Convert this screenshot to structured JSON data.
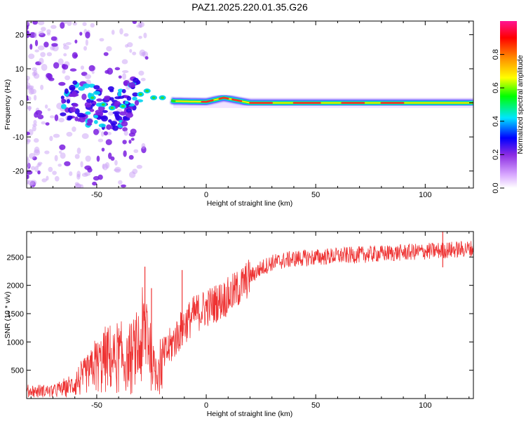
{
  "title": "PAZ1.2025.220.01.35.G26",
  "chart_data": [
    {
      "type": "heatmap",
      "xlabel": "Height of straight line (km)",
      "ylabel": "Frequency (Hz)",
      "xlim": [
        -82,
        122
      ],
      "ylim": [
        -25,
        24
      ],
      "x_ticks": [
        -50,
        0,
        50,
        100
      ],
      "y_ticks": [
        20,
        10,
        0,
        -10,
        -20
      ],
      "colorbar": {
        "label": "Normalized spectral amplitude",
        "range": [
          0,
          1
        ],
        "ticks": [
          "0.0",
          "0.2",
          "0.4",
          "0.6",
          "0.8"
        ],
        "colormap": [
          "#ffffff",
          "#d9a8ff",
          "#8a2be2",
          "#0000ff",
          "#00e5ff",
          "#00ff00",
          "#ffff00",
          "#ff8c00",
          "#ff0000",
          "#ff1493"
        ]
      },
      "ridge": [
        {
          "x": -65,
          "y": 0.5
        },
        {
          "x": -50,
          "y": -1
        },
        {
          "x": -40,
          "y": -1.5
        },
        {
          "x": -30,
          "y": 2.5
        },
        {
          "x": -20,
          "y": 1.5
        },
        {
          "x": -15,
          "y": 0.5
        },
        {
          "x": 0,
          "y": 0.3
        },
        {
          "x": 8,
          "y": 1.5
        },
        {
          "x": 20,
          "y": 0
        },
        {
          "x": 122,
          "y": 0
        }
      ]
    },
    {
      "type": "line",
      "xlabel": "Height of straight line (km)",
      "ylabel": "SNR (10 * v/v)",
      "xlim": [
        -82,
        122
      ],
      "ylim": [
        0,
        2950
      ],
      "x_ticks": [
        -50,
        0,
        50,
        100
      ],
      "y_ticks": [
        500,
        1000,
        1500,
        2000,
        2500
      ],
      "color": "#ee3333",
      "envelope": [
        {
          "x": -82,
          "y": 130
        },
        {
          "x": -70,
          "y": 140
        },
        {
          "x": -62,
          "y": 220
        },
        {
          "x": -55,
          "y": 400
        },
        {
          "x": -50,
          "y": 620
        },
        {
          "x": -45,
          "y": 700
        },
        {
          "x": -40,
          "y": 750
        },
        {
          "x": -36,
          "y": 650
        },
        {
          "x": -30,
          "y": 900
        },
        {
          "x": -27,
          "y": 1300
        },
        {
          "x": -24,
          "y": 500
        },
        {
          "x": -20,
          "y": 700
        },
        {
          "x": -15,
          "y": 1000
        },
        {
          "x": -10,
          "y": 1300
        },
        {
          "x": -5,
          "y": 1500
        },
        {
          "x": 0,
          "y": 1600
        },
        {
          "x": 5,
          "y": 1700
        },
        {
          "x": 10,
          "y": 1800
        },
        {
          "x": 15,
          "y": 1950
        },
        {
          "x": 20,
          "y": 2150
        },
        {
          "x": 25,
          "y": 2300
        },
        {
          "x": 30,
          "y": 2400
        },
        {
          "x": 40,
          "y": 2470
        },
        {
          "x": 60,
          "y": 2520
        },
        {
          "x": 80,
          "y": 2560
        },
        {
          "x": 100,
          "y": 2600
        },
        {
          "x": 122,
          "y": 2650
        }
      ],
      "spikes": [
        {
          "x": -28,
          "y": 2330
        },
        {
          "x": -25,
          "y": 1950
        },
        {
          "x": -11,
          "y": 2270
        },
        {
          "x": 108,
          "y": 2950
        }
      ]
    }
  ]
}
